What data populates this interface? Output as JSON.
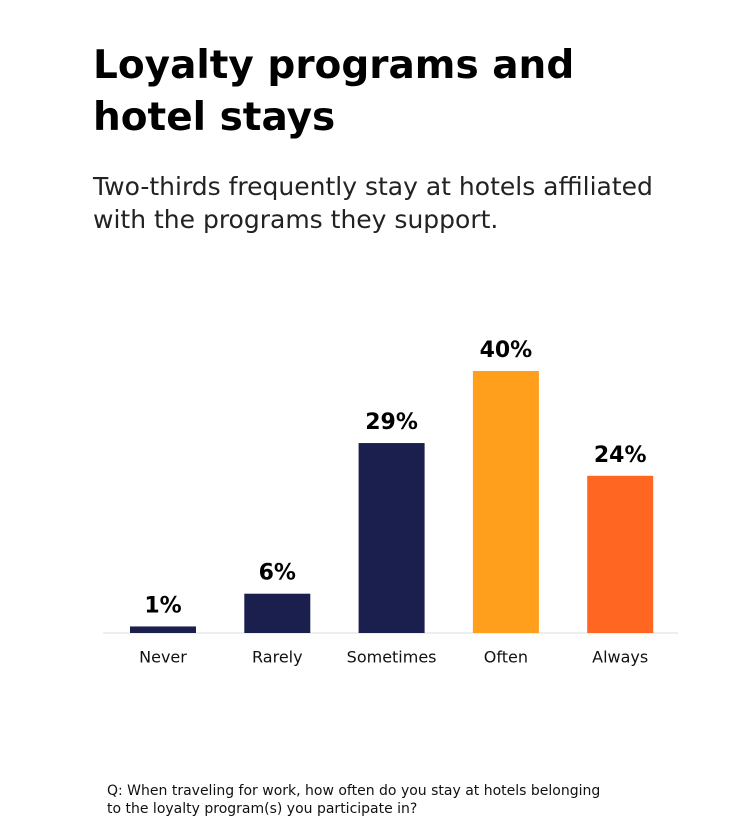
{
  "chart_data": {
    "type": "bar",
    "title": "Loyalty programs and hotel stays",
    "subtitle": "Two-thirds frequently stay at hotels affiliated with the programs they support.",
    "categories": [
      "Never",
      "Rarely",
      "Sometimes",
      "Often",
      "Always"
    ],
    "values": [
      1,
      6,
      29,
      40,
      24
    ],
    "value_labels": [
      "1%",
      "6%",
      "29%",
      "40%",
      "24%"
    ],
    "colors": [
      "#1a1f4e",
      "#1a1f4e",
      "#1a1f4e",
      "#ff9f1c",
      "#ff6622"
    ],
    "note": "Q: When traveling for work, how often do you stay at hotels belonging to the loyalty program(s) you participate in?"
  }
}
